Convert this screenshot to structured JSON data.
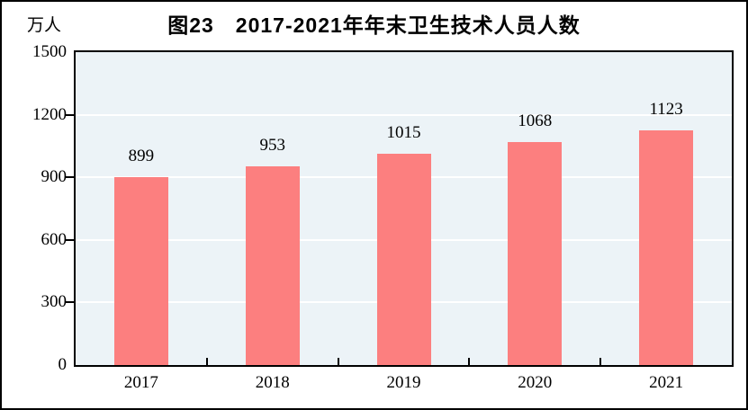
{
  "figure": {
    "title": "图23　2017-2021年年末卫生技术人员人数",
    "unit_label": "万人"
  },
  "chart_data": {
    "type": "bar",
    "title": "图23　2017-2021年年末卫生技术人员人数",
    "ylabel": "万人",
    "xlabel": "",
    "categories": [
      "2017",
      "2018",
      "2019",
      "2020",
      "2021"
    ],
    "values": [
      899,
      953,
      1015,
      1068,
      1123
    ],
    "ylim": [
      0,
      1500
    ],
    "yticks": [
      0,
      300,
      600,
      900,
      1200,
      1500
    ],
    "grid": true,
    "legend": "none",
    "colors": {
      "bar": "#fc7f7f",
      "plot_background": "#ecf3f7",
      "gridline": "#ffffff",
      "axis": "#000000",
      "text": "#000000"
    }
  }
}
